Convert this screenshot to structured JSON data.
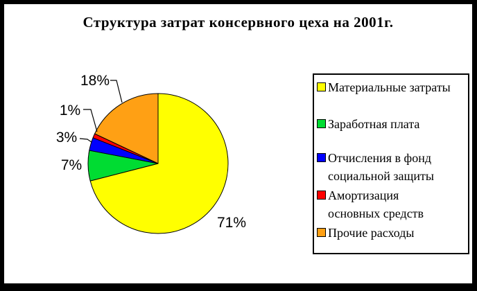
{
  "chart_data": {
    "type": "pie",
    "title": "Структура затрат консервного цеха на 2001г.",
    "unit": "%",
    "legend_position": "right",
    "background_color": "#FFFFFF",
    "frame_color": "#000000",
    "slices": [
      {
        "name": "Материальные затраты",
        "legend_lines": [
          "Материальные затраты"
        ],
        "value": 71,
        "pct_label": "71%",
        "color": "#FFFF00"
      },
      {
        "name": "Заработная плата",
        "legend_lines": [
          "Заработная плата"
        ],
        "value": 7,
        "pct_label": "7%",
        "color": "#00DC32"
      },
      {
        "name": "Отчисления в фонд социальной защиты",
        "legend_lines": [
          "Отчисления в фонд",
          "социальной защиты"
        ],
        "value": 3,
        "pct_label": "3%",
        "color": "#0000FF"
      },
      {
        "name": "Амортизация основных средств",
        "legend_lines": [
          "Амортизация",
          "основных средств"
        ],
        "value": 1,
        "pct_label": "1%",
        "color": "#FF0000"
      },
      {
        "name": "Прочие расходы",
        "legend_lines": [
          "Прочие расходы"
        ],
        "value": 18,
        "pct_label": "18%",
        "color": "#FFA014"
      }
    ]
  }
}
